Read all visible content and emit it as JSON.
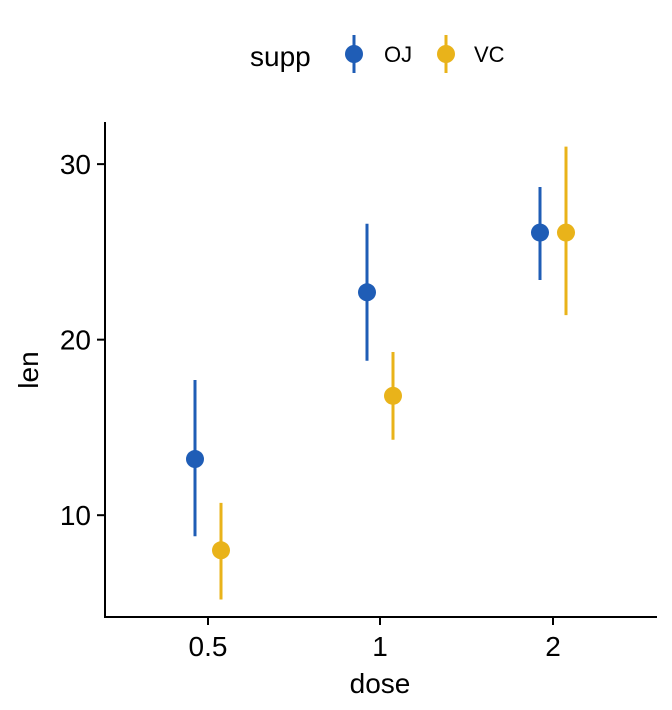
{
  "chart_data": {
    "type": "scatter",
    "title": "",
    "xlabel": "dose",
    "ylabel": "len",
    "categories": [
      "0.5",
      "1",
      "2"
    ],
    "yticks": [
      10,
      20,
      30
    ],
    "ylim": [
      4.2,
      32.4
    ],
    "grid": false,
    "legend": {
      "title": "supp",
      "position": "top",
      "entries": [
        "OJ",
        "VC"
      ]
    },
    "colors": {
      "OJ": "#1F5DB6",
      "VC": "#E9B31A"
    },
    "series": [
      {
        "name": "OJ",
        "values": [
          13.2,
          22.7,
          26.1
        ],
        "lower": [
          8.8,
          18.8,
          23.4
        ],
        "upper": [
          17.7,
          26.6,
          28.7
        ]
      },
      {
        "name": "VC",
        "values": [
          8.0,
          16.8,
          26.1
        ],
        "lower": [
          5.2,
          14.3,
          21.4
        ],
        "upper": [
          10.7,
          19.3,
          31.0
        ]
      }
    ]
  }
}
